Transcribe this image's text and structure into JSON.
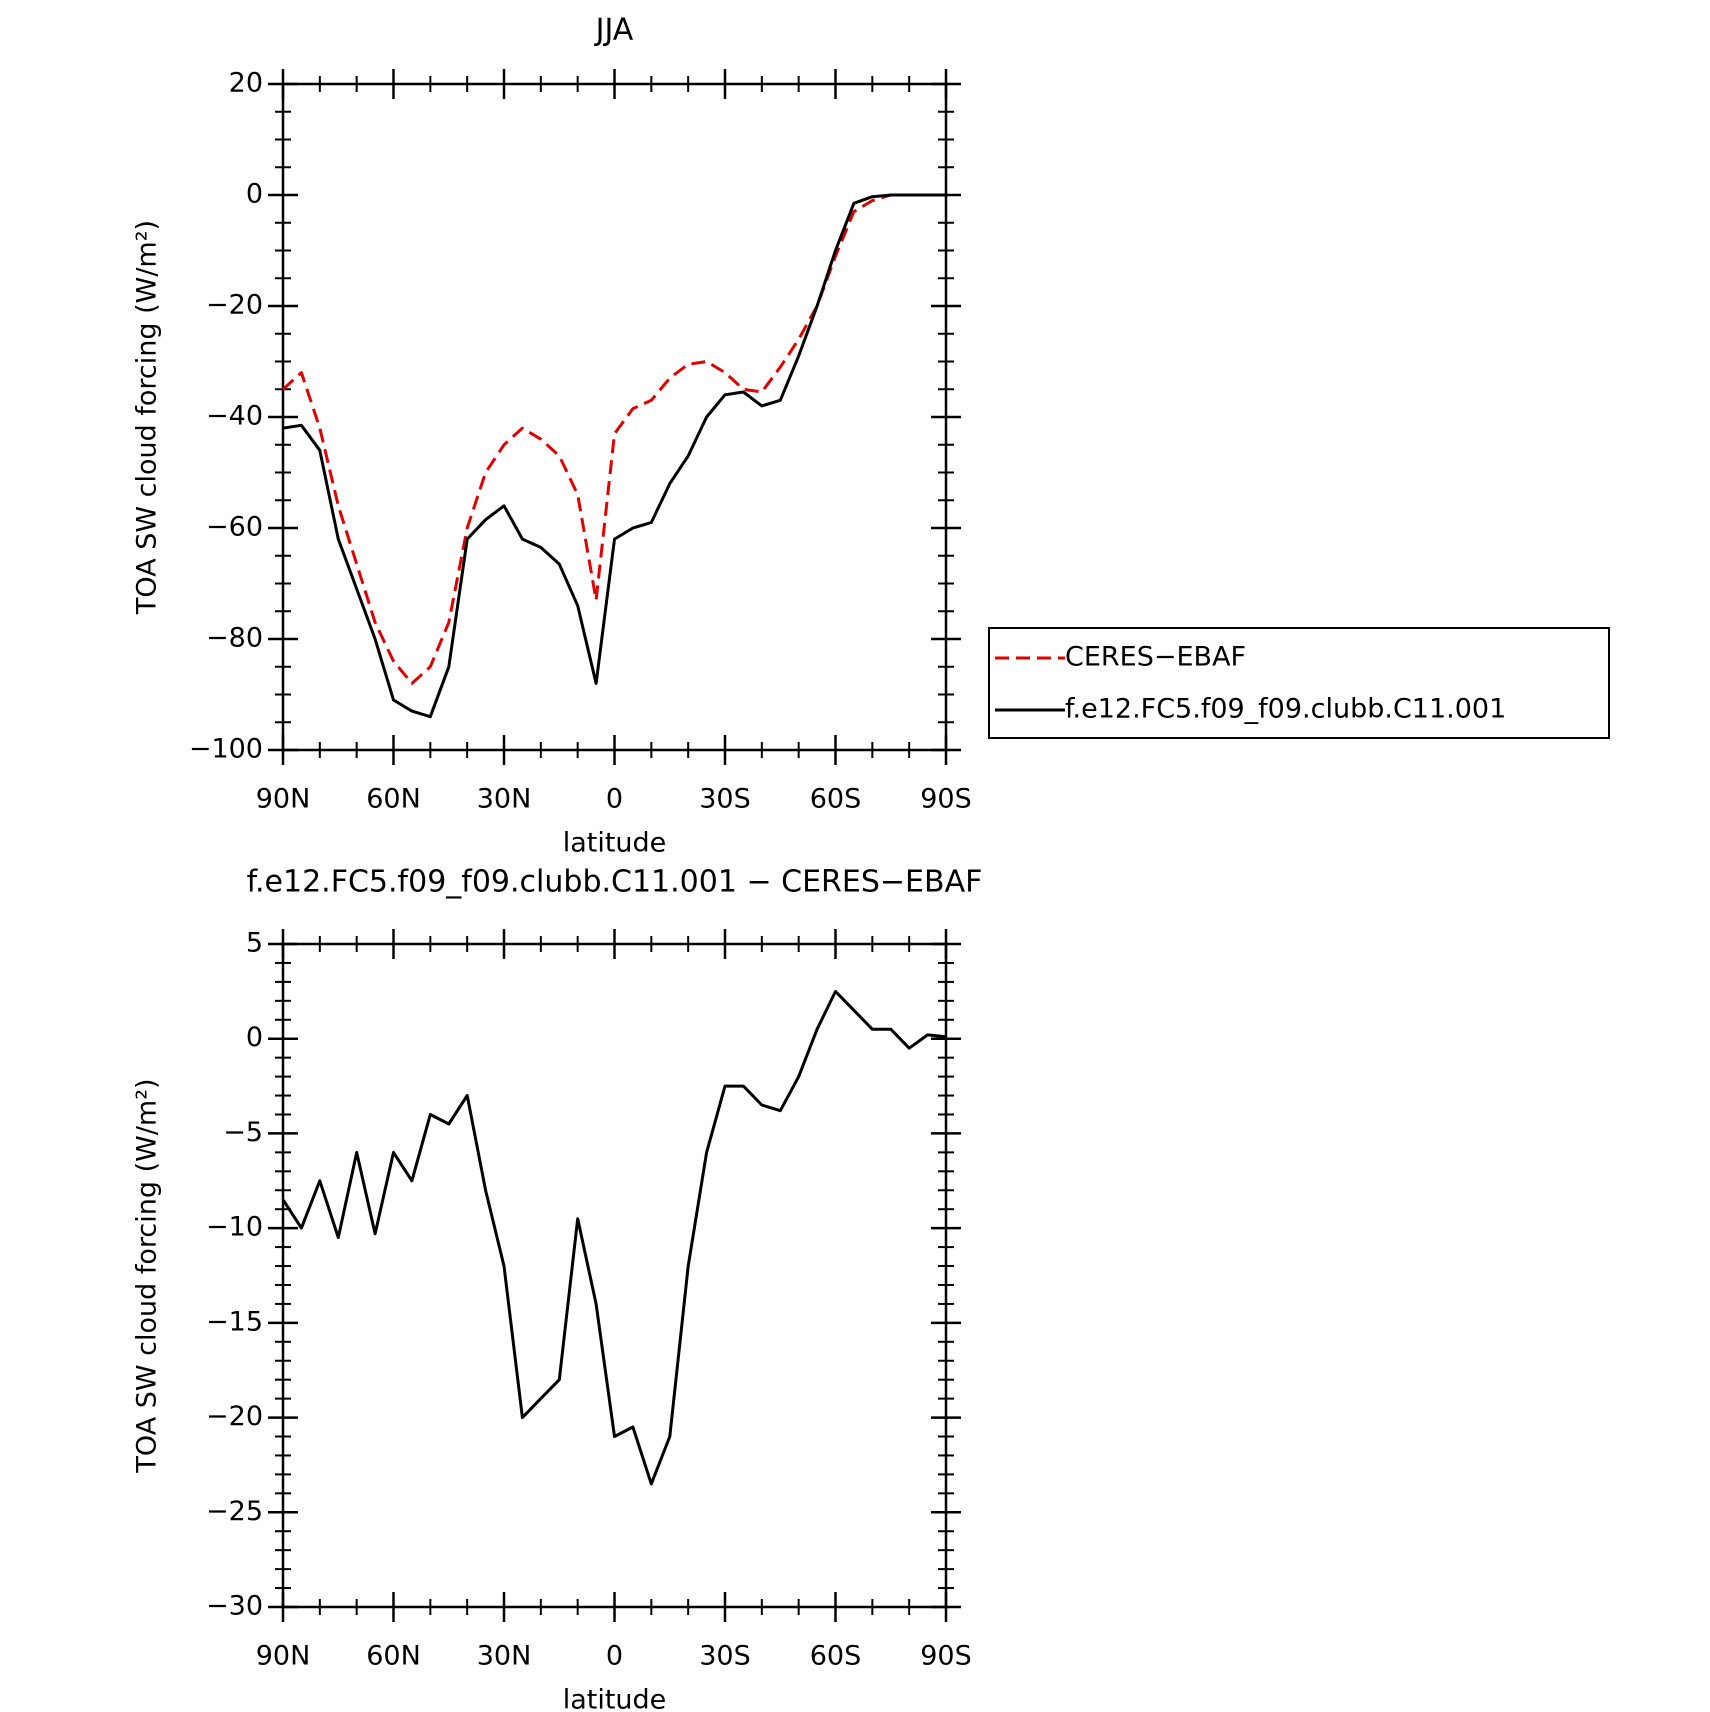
{
  "chart_data": [
    {
      "type": "line",
      "title": "JJA",
      "x_label": "latitude",
      "y_label": "TOA SW cloud forcing (W/m²)",
      "x": [
        90,
        85,
        80,
        75,
        70,
        65,
        60,
        55,
        50,
        45,
        40,
        35,
        30,
        25,
        20,
        15,
        10,
        5,
        0,
        -5,
        -10,
        -15,
        -20,
        -25,
        -30,
        -35,
        -40,
        -45,
        -50,
        -55,
        -60,
        -65,
        -70,
        -75,
        -80,
        -85,
        -90
      ],
      "series": [
        {
          "name": "CERES−EBAF",
          "color": "#e00000",
          "dash": true,
          "values": [
            -35,
            -32,
            -42,
            -56,
            -66.5,
            -77,
            -84,
            -88,
            -85,
            -77,
            -60,
            -50,
            -45,
            -42,
            -44,
            -47,
            -54,
            -73,
            -43,
            -38.5,
            -37,
            -33,
            -30.5,
            -30,
            -32,
            -35,
            -35.5,
            -31,
            -26,
            -20,
            -11,
            -3,
            -1,
            0,
            0,
            0,
            0
          ]
        },
        {
          "name": "f.e12.FC5.f09_f09.clubb.C11.001",
          "color": "#000000",
          "dash": false,
          "values": [
            -42,
            -41.5,
            -46,
            -62,
            -71,
            -80,
            -91,
            -93,
            -94,
            -85,
            -62,
            -58.5,
            -56,
            -62,
            -63.5,
            -66.5,
            -74,
            -88,
            -62,
            -60,
            -59,
            -52,
            -47,
            -40,
            -36,
            -35.5,
            -38,
            -37,
            -29,
            -20,
            -10,
            -1.5,
            -0.3,
            0,
            0,
            0,
            0
          ]
        }
      ],
      "xlim": [
        90,
        -90
      ],
      "xticks": [
        {
          "value": 90,
          "label": "90N"
        },
        {
          "value": 60,
          "label": "60N"
        },
        {
          "value": 30,
          "label": "30N"
        },
        0,
        {
          "value": -30,
          "label": "30S"
        },
        {
          "value": -60,
          "label": "60S"
        },
        {
          "value": -90,
          "label": "90S"
        }
      ],
      "ylim": [
        -100,
        20
      ],
      "yticks": [
        {
          "value": -100,
          "label": "−100"
        },
        {
          "value": -80,
          "label": "−80"
        },
        {
          "value": -60,
          "label": "−60"
        },
        {
          "value": -40,
          "label": "−40"
        },
        {
          "value": -20,
          "label": "−20"
        },
        0,
        20
      ]
    },
    {
      "type": "line",
      "title": "f.e12.FC5.f09_f09.clubb.C11.001 − CERES−EBAF",
      "x_label": "latitude",
      "y_label": "TOA SW cloud forcing (W/m²)",
      "x": [
        90,
        85,
        80,
        75,
        70,
        65,
        60,
        55,
        50,
        45,
        40,
        35,
        30,
        25,
        20,
        15,
        10,
        5,
        0,
        -5,
        -10,
        -15,
        -20,
        -25,
        -30,
        -35,
        -40,
        -45,
        -50,
        -55,
        -60,
        -65,
        -70,
        -75,
        -80,
        -85,
        -90
      ],
      "series": [
        {
          "color": "#000000",
          "dash": false,
          "values": [
            -8.5,
            -10,
            -7.5,
            -10.5,
            -6,
            -10.3,
            -6,
            -7.5,
            -4,
            -4.5,
            -3,
            -8,
            -12,
            -20,
            -19,
            -18,
            -9.5,
            -14,
            -21,
            -20.5,
            -23.5,
            -21,
            -12,
            -6,
            -2.5,
            -2.5,
            -3.5,
            -3.8,
            -2,
            0.5,
            2.5,
            1.5,
            0.5,
            0.5,
            -0.5,
            0.2,
            0.1
          ]
        }
      ],
      "xlim": [
        90,
        -90
      ],
      "xticks": [
        {
          "value": 90,
          "label": "90N"
        },
        {
          "value": 60,
          "label": "60N"
        },
        {
          "value": 30,
          "label": "30N"
        },
        0,
        {
          "value": -30,
          "label": "30S"
        },
        {
          "value": -60,
          "label": "60S"
        },
        {
          "value": -90,
          "label": "90S"
        }
      ],
      "ylim": [
        -30,
        5
      ],
      "yticks": [
        {
          "value": -30,
          "label": "−30"
        },
        {
          "value": -25,
          "label": "−25"
        },
        {
          "value": -20,
          "label": "−20"
        },
        {
          "value": -15,
          "label": "−15"
        },
        {
          "value": -10,
          "label": "−10"
        },
        {
          "value": -5,
          "label": "−5"
        },
        0,
        5
      ]
    }
  ]
}
